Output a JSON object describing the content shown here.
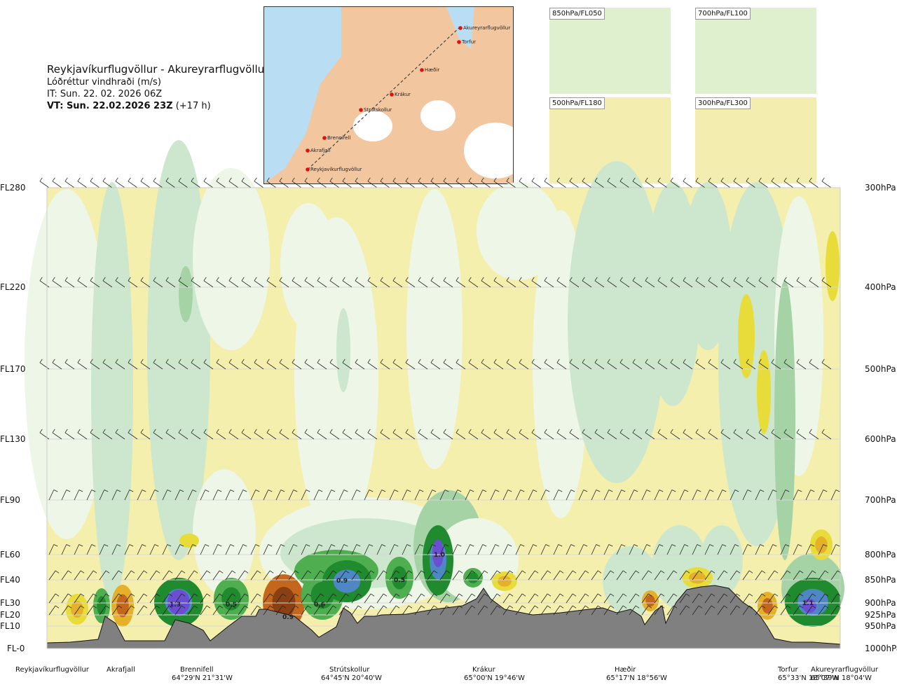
{
  "header": {
    "route": "Reykjavíkurflugvöllur - Akureyrarflugvöllur",
    "field": "Lóðréttur vindhraði (m/s)",
    "issued": "IT: Sun. 22. 02. 2026 06Z",
    "valid_bold": "VT: Sun. 22.02.2026 23Z",
    "valid_lead": "(+17 h)"
  },
  "overview_map": {
    "points": [
      "Reykjavíkurflugvöllur",
      "Akrafjall",
      "Brennifell",
      "Strútskollur",
      "Krákur",
      "Hæðir",
      "Torfur",
      "Akureyrarflugvöllur"
    ]
  },
  "mini_maps": [
    "850hPa/FL050",
    "700hPa/FL100",
    "500hPa/FL180",
    "300hPa/FL300"
  ],
  "levels_left": [
    "FL280",
    "FL220",
    "FL170",
    "FL130",
    "FL90",
    "FL60",
    "FL40",
    "FL30",
    "FL20",
    "FL10",
    "FL-0"
  ],
  "levels_right": [
    "300hPa",
    "400hPa",
    "500hPa",
    "600hPa",
    "700hPa",
    "800hPa",
    "850hPa",
    "900hPa",
    "925hPa",
    "950hPa",
    "1000hPa"
  ],
  "locations": [
    {
      "name": "Reykjavíkurflugvöllur",
      "coord": ""
    },
    {
      "name": "Akrafjall",
      "coord": ""
    },
    {
      "name": "Brennifell",
      "coord": "64°29'N 21°31'W"
    },
    {
      "name": "Strútskollur",
      "coord": "64°45'N 20°40'W"
    },
    {
      "name": "Krákur",
      "coord": "65°00'N 19°46'W"
    },
    {
      "name": "Hæðir",
      "coord": "65°17'N 18°56'W"
    },
    {
      "name": "Torfur",
      "coord": "65°33'N 18°07'W"
    },
    {
      "name": "Akureyrarflugvöllur",
      "coord": "65°39'N 18°04'W"
    }
  ],
  "chart_data": {
    "type": "heatmap",
    "title": "Reykjavíkurflugvöllur - Akureyrarflugvöllur",
    "field": "Lóðréttur vindhraði (m/s)",
    "y_levels_hPa": [
      300,
      400,
      500,
      600,
      700,
      800,
      850,
      900,
      925,
      950,
      1000
    ],
    "annotations": [
      {
        "label": "1.3",
        "location": "Brennifell",
        "level_hPa": 900
      },
      {
        "label": "0.5",
        "location": "Brennifell-Strútskollur",
        "level_hPa": 900
      },
      {
        "label": "0.9",
        "location": "Strútskollur",
        "level_hPa": 940
      },
      {
        "label": "0.6",
        "location": "Strútskollur",
        "level_hPa": 900
      },
      {
        "label": "0.9",
        "location": "Strútskollur",
        "level_hPa": 850
      },
      {
        "label": "0.5",
        "location": "Strútskollur-Krákur",
        "level_hPa": 850
      },
      {
        "label": "1.0",
        "location": "Krákur",
        "level_hPa": 800
      },
      {
        "label": "1.1",
        "location": "Akureyrarflugvöllur",
        "level_hPa": 900
      }
    ],
    "colors": {
      "weak_neg": "#f3eda6",
      "neg": "#e8dc3a",
      "neg_strong": "#e6b12a",
      "neg_stronger": "#c4671c",
      "neg_max": "#8a4012",
      "weak_pos": "#eef6e8",
      "pos": "#cce7cd",
      "pos2": "#a5d3a6",
      "pos3": "#4fae4f",
      "pos4": "#1f8a2e",
      "pos5": "#4f86c4",
      "pos6": "#6a4fd0",
      "terrain": "#808080"
    }
  }
}
